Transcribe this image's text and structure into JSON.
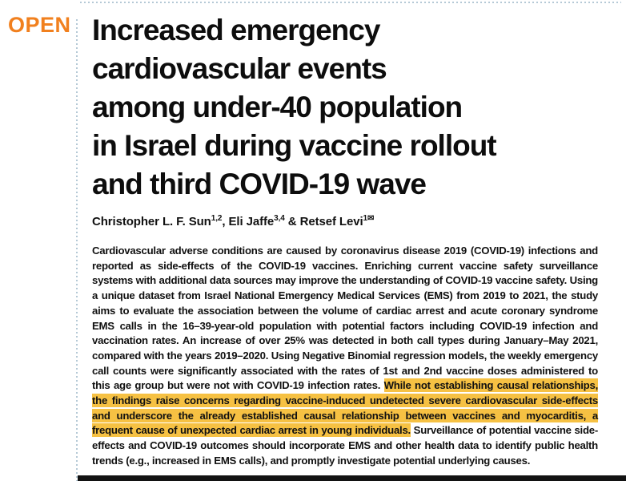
{
  "badge": {
    "open_label": "OPEN"
  },
  "colors": {
    "accent_orange": "#f1801e",
    "highlight_yellow": "#f6c143",
    "dotted_rule": "#b5c9d6",
    "text": "#111111",
    "bottom_bar": "#121212"
  },
  "article": {
    "title_lines": [
      "Increased emergency",
      "cardiovascular events",
      "among under-40 population",
      "in Israel during vaccine rollout",
      "and third COVID-19 wave"
    ]
  },
  "authors": [
    {
      "name": "Christopher L. F. Sun",
      "sup": "1,2",
      "sep": ", "
    },
    {
      "name": "Eli Jaffe",
      "sup": "3,4",
      "sep": " & "
    },
    {
      "name": "Retsef Levi",
      "sup": "1",
      "sep": ""
    }
  ],
  "correspondence_icon": "✉",
  "abstract": {
    "before_highlight": "Cardiovascular adverse conditions are caused by coronavirus disease 2019 (COVID-19) infections and reported as side-effects of the COVID-19 vaccines. Enriching current vaccine safety surveillance systems with additional data sources may improve the understanding of COVID-19 vaccine safety. Using a unique dataset from Israel National Emergency Medical Services (EMS) from 2019 to 2021, the study aims to evaluate the association between the volume of cardiac arrest and acute coronary syndrome EMS calls in the 16–39-year-old population with potential factors including COVID-19 infection and vaccination rates. An increase of over 25% was detected in both call types during January–May 2021, compared with the years 2019–2020. Using Negative Binomial regression models, the weekly emergency call counts were significantly associated with the rates of 1st and 2nd vaccine doses administered to this age group but were not with COVID-19 infection rates. ",
    "highlight": "While not establishing causal relationships, the findings raise concerns regarding vaccine-induced undetected severe cardiovascular side-effects and underscore the already established causal relationship between vaccines and myocarditis, a frequent cause of unexpected cardiac arrest in young individuals.",
    "after_highlight": " Surveillance of potential vaccine side-effects and COVID-19 outcomes should incorporate EMS and other health data to identify public health trends (e.g., increased in EMS calls), and promptly investigate potential underlying causes."
  }
}
